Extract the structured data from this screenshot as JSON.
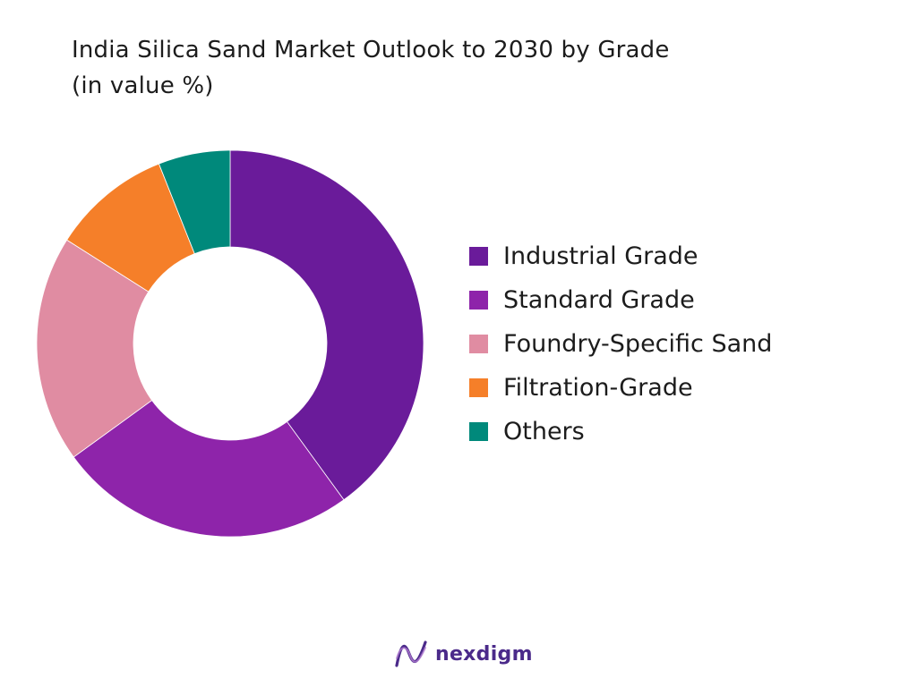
{
  "chart_data": {
    "type": "pie",
    "donut": true,
    "title": "India Silica Sand Market Outlook to 2030 by Grade",
    "subtitle": "(in value %)",
    "categories": [
      "Industrial Grade",
      "Standard Grade",
      "Foundry-Specific Sand",
      "Filtration-Grade",
      "Others"
    ],
    "values": [
      40,
      25,
      19,
      10,
      6
    ],
    "colors": [
      "#6a1b9a",
      "#8e24aa",
      "#e08ca2",
      "#f57f29",
      "#00897b"
    ],
    "legend_position": "right"
  },
  "brand": {
    "name": "nexdigm",
    "logo_icon": "nexdigm-logo-icon",
    "logo_color": "#4b2a8a"
  }
}
